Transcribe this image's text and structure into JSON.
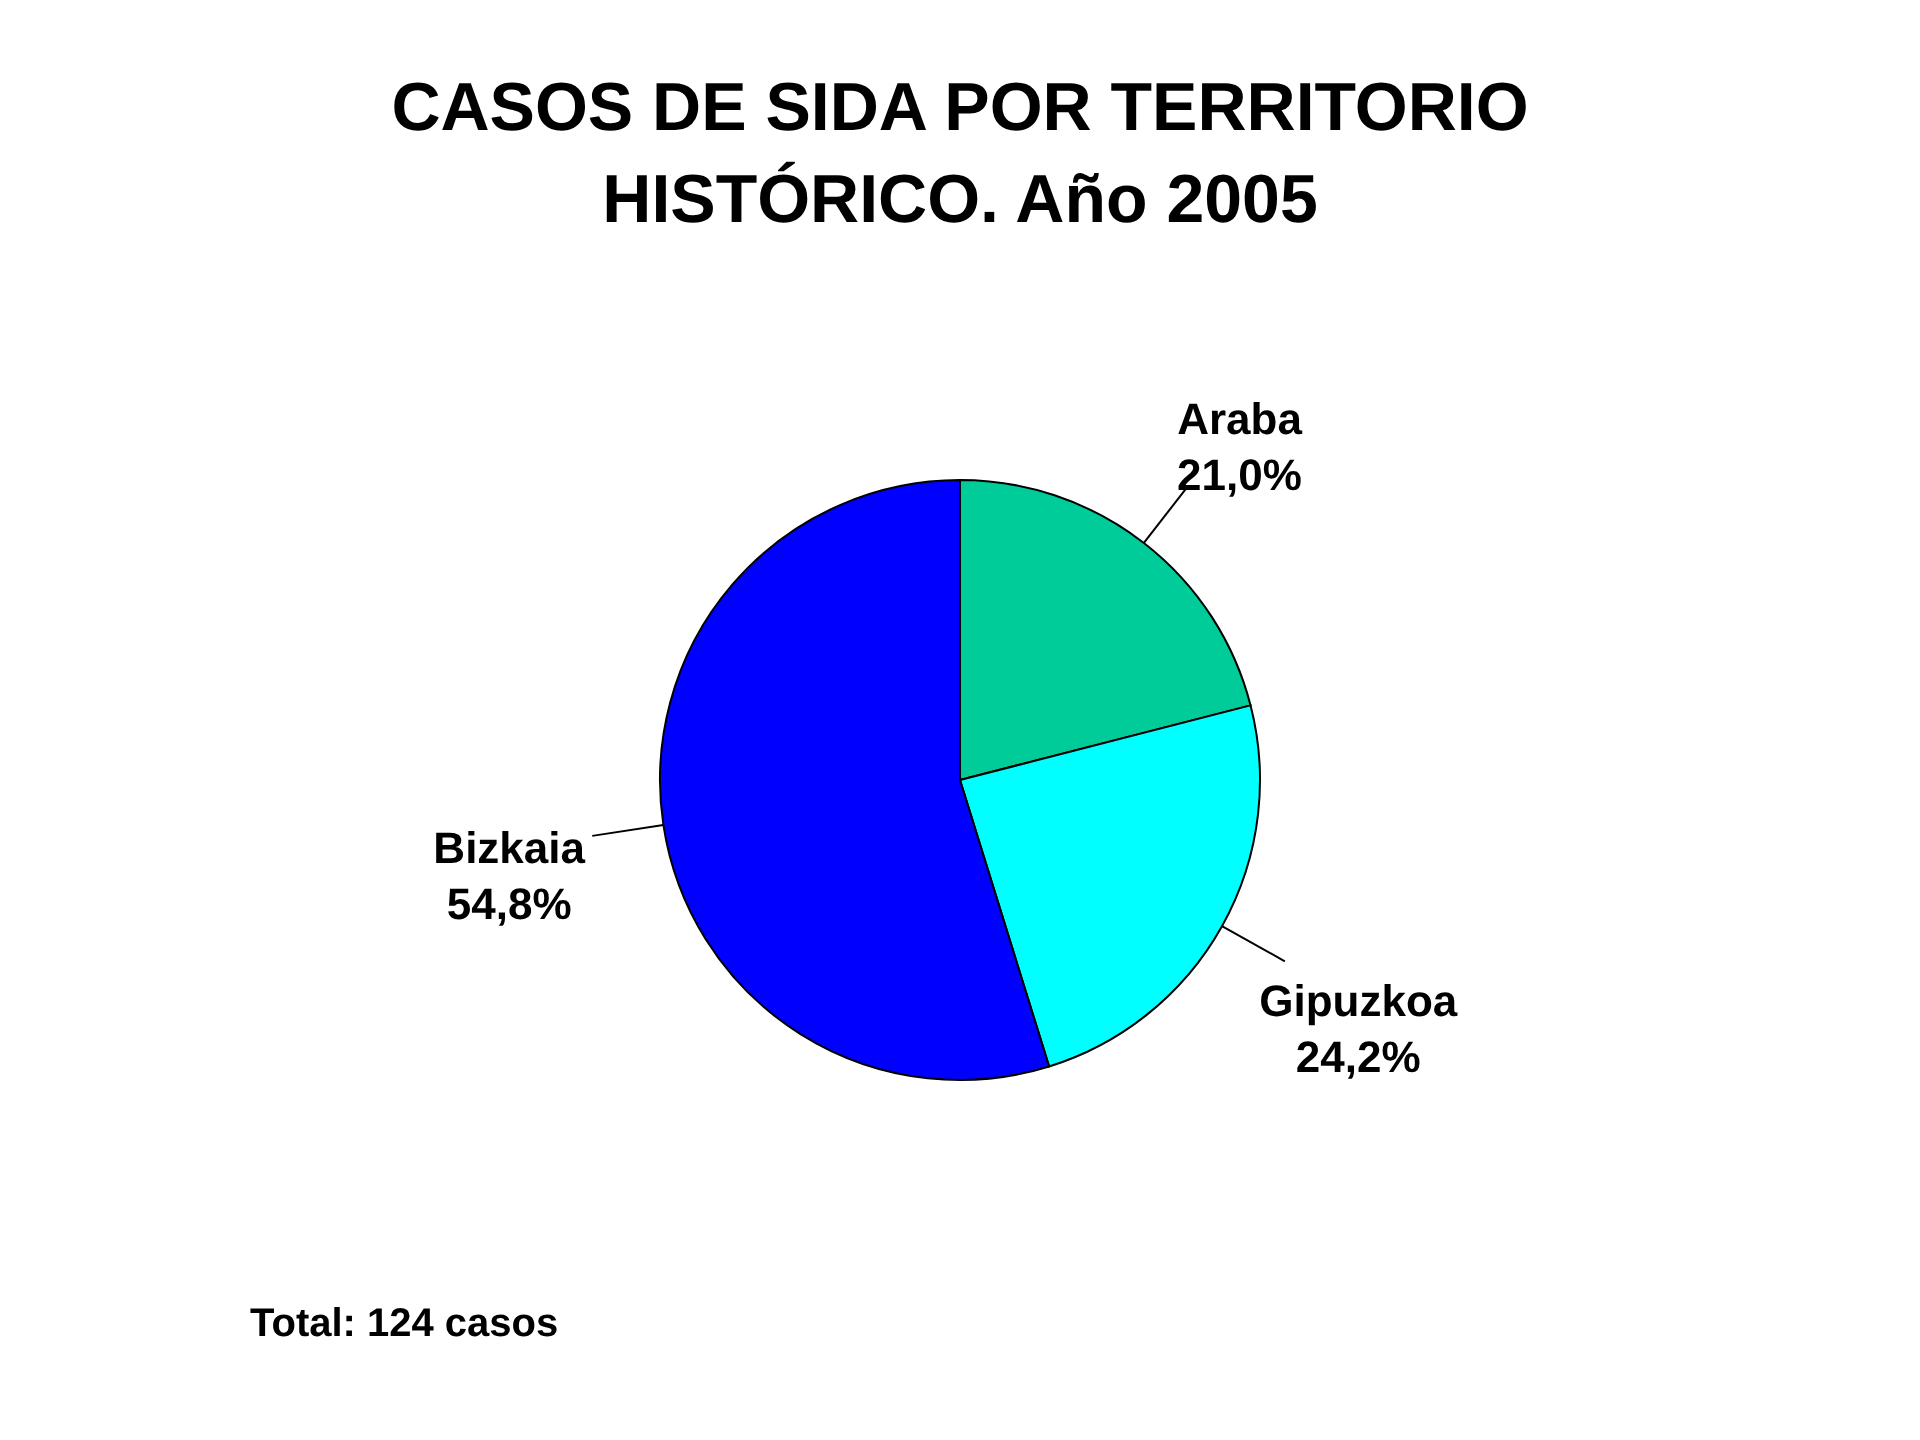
{
  "chart_data": {
    "type": "pie",
    "title": "CASOS DE SIDA POR TERRITORIO HISTÓRICO. Año 2005",
    "categories": [
      "Araba",
      "Gipuzkoa",
      "Bizkaia"
    ],
    "values": [
      21.0,
      24.2,
      54.8
    ],
    "colors": [
      "#00cc99",
      "#00ffff",
      "#0000ff"
    ],
    "value_labels": [
      "21,0%",
      "24,2%",
      "54,8%"
    ],
    "annotations": [
      "Total: 124 casos"
    ]
  }
}
